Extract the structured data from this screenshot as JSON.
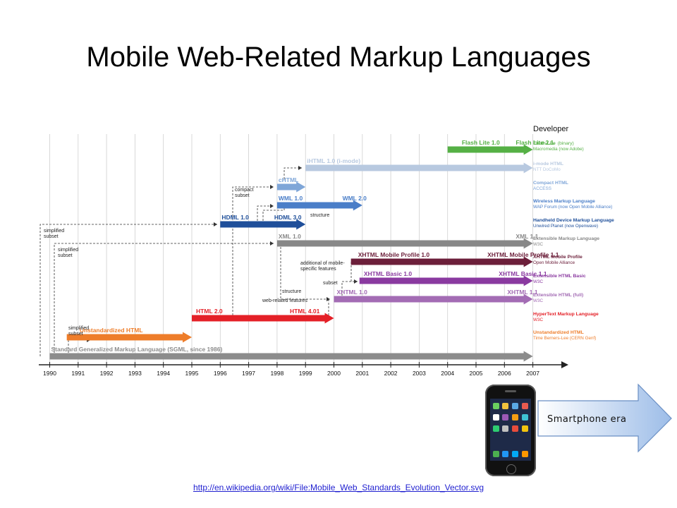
{
  "slide": {
    "title": "Mobile Web-Related Markup Languages",
    "source_link": "http://en.wikipedia.org/wiki/File:Mobile_Web_Standards_Evolution_Vector.svg",
    "callout": "Smartphone era"
  },
  "diagram": {
    "developer_header": "Developer",
    "years": [
      "1990",
      "1991",
      "1992",
      "1993",
      "1994",
      "1995",
      "1996",
      "1997",
      "1998",
      "1999",
      "2000",
      "2001",
      "2002",
      "2003",
      "2004",
      "2005",
      "2006",
      "2007"
    ],
    "bars": [
      {
        "id": "flash-lite",
        "color": "#55b045",
        "start": 2004,
        "end": 2007,
        "labels": [
          {
            "text": "Flash Lite 1.0",
            "year": 2004.5
          },
          {
            "text": "Flash Lite 2.1",
            "year": 2006.4
          }
        ]
      },
      {
        "id": "ihtml",
        "color": "#b8c9e0",
        "start": 1999,
        "end": 2007,
        "labels": [
          {
            "text": "iHTML 1.0 (i-mode)",
            "year": 1999.05
          }
        ]
      },
      {
        "id": "chtml",
        "color": "#7fa6d8",
        "start": 1998,
        "end": 1999,
        "labels": [
          {
            "text": "cHTML",
            "year": 1998.05
          }
        ]
      },
      {
        "id": "wml",
        "color": "#4a7ec8",
        "start": 1998,
        "end": 2001,
        "labels": [
          {
            "text": "WML 1.0",
            "year": 1998.05
          },
          {
            "text": "WML 2.0",
            "year": 2000.3
          }
        ]
      },
      {
        "id": "hdml",
        "color": "#1f4f9a",
        "start": 1996,
        "end": 1999,
        "labels": [
          {
            "text": "HDML 1.0",
            "year": 1996.05
          },
          {
            "text": "HDML 3.0",
            "year": 1997.9
          }
        ]
      },
      {
        "id": "xml",
        "color": "#888888",
        "start": 1998,
        "end": 2007,
        "labels": [
          {
            "text": "XML 1.0",
            "year": 1998.05
          },
          {
            "text": "XML 1.1",
            "year": 2006.4
          }
        ]
      },
      {
        "id": "xhtml-mp",
        "color": "#6c1f3a",
        "start": 2000.6,
        "end": 2007,
        "labels": [
          {
            "text": "XHTML Mobile Profile 1.0",
            "year": 2000.85
          },
          {
            "text": "XHTML Mobile Profile 1.1",
            "year": 2005.4
          }
        ]
      },
      {
        "id": "xhtml-basic",
        "color": "#8a3aa0",
        "start": 2000.9,
        "end": 2007,
        "labels": [
          {
            "text": "XHTML Basic 1.0",
            "year": 2001.05
          },
          {
            "text": "XHTML Basic 1.1",
            "year": 2005.8
          }
        ]
      },
      {
        "id": "xhtml",
        "color": "#a36cb4",
        "start": 2000,
        "end": 2007,
        "labels": [
          {
            "text": "XHTML 1.0",
            "year": 2000.1
          },
          {
            "text": "XHTML 1.1",
            "year": 2006.1
          }
        ]
      },
      {
        "id": "html",
        "color": "#e42027",
        "start": 1995,
        "end": 2000,
        "labels": [
          {
            "text": "HTML 2.0",
            "year": 1995.15
          },
          {
            "text": "HTML 4.01",
            "year": 1998.45
          }
        ]
      },
      {
        "id": "unstd-html",
        "color": "#ee7d2a",
        "start": 1990.6,
        "end": 1995,
        "labels": [
          {
            "text": "Unstandardized HTML",
            "year": 1991.05
          }
        ]
      },
      {
        "id": "sgml",
        "color": "#8c8c8c",
        "start": 1990,
        "end": 2007,
        "labels": [
          {
            "text": "Standard Generalized Markup Language (SGML, since 1986)",
            "year": 1990.05
          }
        ]
      }
    ],
    "legend": [
      {
        "name": "Flash Lite",
        "sub_inline": "(binary)",
        "developer": "Macromedia (now Adobe)",
        "color": "#55b045"
      },
      {
        "name": "i-mode HTML",
        "developer": "NTT DoCoMo",
        "color": "#b8c9e0"
      },
      {
        "name": "Compact HTML",
        "developer": "ACCESS",
        "color": "#7fa6d8"
      },
      {
        "name": "Wireless Markup Language",
        "developer": "WAP Forum (now Open Mobile Alliance)",
        "color": "#4a7ec8"
      },
      {
        "name": "Handheld Device Markup Language",
        "developer": "Unwired Planet (now Openwave)",
        "color": "#1f4f9a"
      },
      {
        "name": "Extensible Markup Language",
        "developer": "W3C",
        "color": "#888888"
      },
      {
        "name": "XHTML Mobile Profile",
        "developer": "Open Mobile Alliance",
        "color": "#6c1f3a"
      },
      {
        "name": "Extensible HTML Basic",
        "developer": "W3C",
        "color": "#8a3aa0"
      },
      {
        "name": "Extensible HTML (full)",
        "developer": "W3C",
        "color": "#a36cb4"
      },
      {
        "name": "HyperText Markup Language",
        "developer": "W3C",
        "color": "#e42027"
      },
      {
        "name": "Unstandardized HTML",
        "developer": "Time Berners-Lee (CERN Genf)",
        "color": "#ee7d2a"
      }
    ],
    "annotations": {
      "simplified_subset_1": [
        "simplified",
        "subset"
      ],
      "simplified_subset_2": [
        "simplified",
        "subset"
      ],
      "simplified_subset_3": [
        "simplified",
        "subset"
      ],
      "compact_subset": [
        "compact",
        "subset"
      ],
      "structure_1": "structure",
      "additional": [
        "additional of mobile-",
        "specific features"
      ],
      "subset": "subset",
      "structure_2": "structure",
      "web_related": "web-related features"
    }
  }
}
